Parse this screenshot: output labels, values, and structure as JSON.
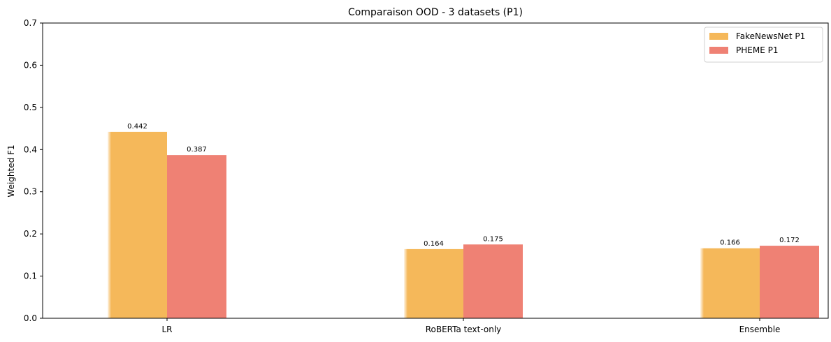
{
  "chart_data": {
    "type": "bar",
    "title": "Comparaison OOD - 3 datasets (P1)",
    "xlabel": "",
    "ylabel": "Weighted F1",
    "ylim": [
      0,
      0.7
    ],
    "yticks": [
      "0.0",
      "0.1",
      "0.2",
      "0.3",
      "0.4",
      "0.5",
      "0.6",
      "0.7"
    ],
    "categories": [
      "LR",
      "RoBERTa text-only",
      "Ensemble"
    ],
    "series": [
      {
        "name": "FakeNewsNet P1",
        "values": [
          0.442,
          0.164,
          0.166
        ],
        "labels": [
          "0.442",
          "0.164",
          "0.166"
        ],
        "color": "#f5b85a"
      },
      {
        "name": "PHEME P1",
        "values": [
          0.387,
          0.175,
          0.172
        ],
        "labels": [
          "0.387",
          "0.175",
          "0.172"
        ],
        "color": "#ef8174"
      }
    ],
    "grid": false,
    "legend_position": "top-right"
  }
}
